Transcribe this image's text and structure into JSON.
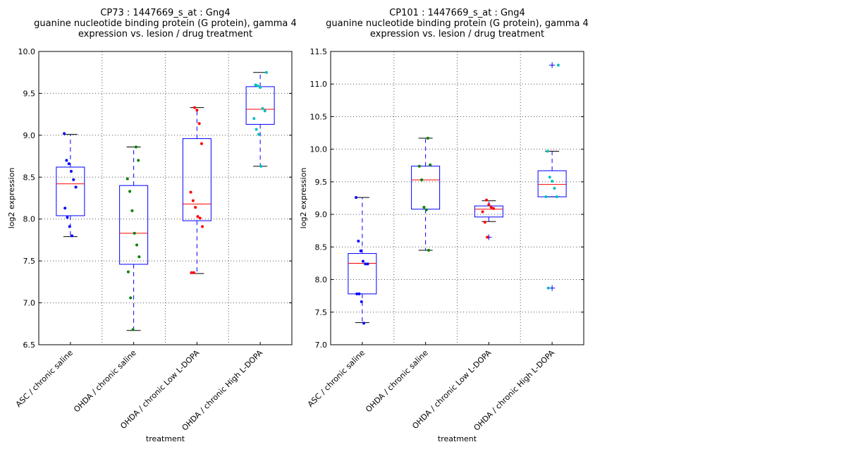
{
  "chart_data": [
    {
      "type": "box",
      "title": [
        "CP73 : 1447669_s_at : Gng4",
        "guanine nucleotide binding protein (G protein), gamma 4",
        "expression vs. lesion / drug treatment"
      ],
      "xlabel": "treatment",
      "ylabel": "log2 expression",
      "ylim": [
        6.5,
        10.0
      ],
      "yticks": [
        "6.5",
        "7.0",
        "7.5",
        "8.0",
        "8.5",
        "9.0",
        "9.5",
        "10.0"
      ],
      "grid": true,
      "categories": [
        "ASC / chronic saline",
        "OHDA / chronic saline",
        "OHDA / chronic Low L-DOPA",
        "OHDA / chronic High L-DOPA"
      ],
      "colors": [
        "#0000ff",
        "#008000",
        "#ff0000",
        "#00bfbf"
      ],
      "boxes": [
        {
          "q1": 8.04,
          "median": 8.42,
          "q3": 8.62,
          "whisker_low": 7.79,
          "whisker_high": 9.01,
          "outliers": [],
          "points": [
            9.02,
            8.7,
            8.66,
            8.57,
            8.47,
            8.38,
            8.13,
            8.02,
            7.91,
            7.8
          ]
        },
        {
          "q1": 7.46,
          "median": 7.83,
          "q3": 8.4,
          "whisker_low": 6.67,
          "whisker_high": 8.86,
          "outliers": [],
          "points": [
            8.86,
            8.7,
            8.48,
            8.33,
            8.1,
            7.83,
            7.69,
            7.55,
            7.37,
            7.06,
            6.68
          ]
        },
        {
          "q1": 7.98,
          "median": 8.18,
          "q3": 8.96,
          "whisker_low": 7.35,
          "whisker_high": 9.33,
          "outliers": [],
          "points": [
            9.33,
            9.3,
            9.14,
            8.9,
            8.32,
            8.22,
            8.14,
            8.03,
            8.01,
            7.91,
            7.36,
            7.36
          ]
        },
        {
          "q1": 9.13,
          "median": 9.31,
          "q3": 9.58,
          "whisker_low": 8.63,
          "whisker_high": 9.75,
          "outliers": [],
          "points": [
            9.75,
            9.6,
            9.59,
            9.57,
            9.32,
            9.29,
            9.2,
            9.07,
            9.01,
            8.63
          ]
        }
      ]
    },
    {
      "type": "box",
      "title": [
        "CP101 : 1447669_s_at : Gng4",
        "guanine nucleotide binding protein (G protein), gamma 4",
        "expression vs. lesion / drug treatment"
      ],
      "xlabel": "treatment",
      "ylabel": "log2 expression",
      "ylim": [
        7.0,
        11.5
      ],
      "yticks": [
        "7.0",
        "7.5",
        "8.0",
        "8.5",
        "9.0",
        "9.5",
        "10.0",
        "10.5",
        "11.0",
        "11.5"
      ],
      "grid": true,
      "categories": [
        "ASC / chronic saline",
        "OHDA / chronic saline",
        "OHDA / chronic Low L-DOPA",
        "OHDA / chronic High L-DOPA"
      ],
      "colors": [
        "#0000ff",
        "#008000",
        "#ff0000",
        "#00bfbf"
      ],
      "boxes": [
        {
          "q1": 7.78,
          "median": 8.25,
          "q3": 8.4,
          "whisker_low": 7.34,
          "whisker_high": 9.26,
          "outliers": [],
          "points": [
            9.26,
            8.59,
            8.44,
            8.28,
            8.24,
            8.24,
            7.78,
            7.78,
            7.66,
            7.33
          ]
        },
        {
          "q1": 9.08,
          "median": 9.53,
          "q3": 9.74,
          "whisker_low": 8.45,
          "whisker_high": 10.17,
          "outliers": [],
          "points": [
            10.17,
            9.76,
            9.74,
            9.53,
            9.11,
            9.07,
            8.45
          ]
        },
        {
          "q1": 8.96,
          "median": 9.08,
          "q3": 9.13,
          "whisker_low": 8.89,
          "whisker_high": 9.21,
          "outliers": [
            8.65
          ],
          "points": [
            9.22,
            9.15,
            9.11,
            9.09,
            9.04,
            8.88,
            8.65
          ]
        },
        {
          "q1": 9.27,
          "median": 9.46,
          "q3": 9.67,
          "whisker_low": 9.27,
          "whisker_high": 9.97,
          "outliers": [
            11.29,
            7.87
          ],
          "points": [
            11.29,
            9.97,
            9.57,
            9.51,
            9.4,
            9.27,
            9.27,
            7.87
          ]
        }
      ]
    }
  ]
}
